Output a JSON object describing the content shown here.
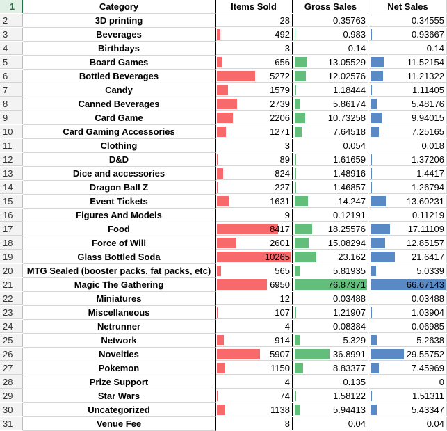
{
  "header": {
    "row_number": "1",
    "category": "Category",
    "items_sold": "Items Sold",
    "gross_sales": "Gross Sales",
    "net_sales": "Net Sales"
  },
  "colors": {
    "items_bar": "#f8696b",
    "gross_bar": "#63be7b",
    "net_bar": "#5a8ac6",
    "selected_row_header": "#217346"
  },
  "scale": {
    "items_max": 10265,
    "gross_max": 76.87371,
    "net_max": 66.67143
  },
  "rows": [
    {
      "n": "2",
      "category": "3D printing",
      "items": "28",
      "gross": "0.35763",
      "net": "0.34555"
    },
    {
      "n": "3",
      "category": "Beverages",
      "items": "492",
      "gross": "0.983",
      "net": "0.93667"
    },
    {
      "n": "4",
      "category": "Birthdays",
      "items": "3",
      "gross": "0.14",
      "net": "0.14"
    },
    {
      "n": "5",
      "category": "Board Games",
      "items": "656",
      "gross": "13.05529",
      "net": "11.52154"
    },
    {
      "n": "6",
      "category": "Bottled Beverages",
      "items": "5272",
      "gross": "12.02576",
      "net": "11.21322"
    },
    {
      "n": "7",
      "category": "Candy",
      "items": "1579",
      "gross": "1.18444",
      "net": "1.11405"
    },
    {
      "n": "8",
      "category": "Canned Beverages",
      "items": "2739",
      "gross": "5.86174",
      "net": "5.48176"
    },
    {
      "n": "9",
      "category": "Card Game",
      "items": "2206",
      "gross": "10.73258",
      "net": "9.94015"
    },
    {
      "n": "10",
      "category": "Card Gaming Accessories",
      "items": "1271",
      "gross": "7.64518",
      "net": "7.25165"
    },
    {
      "n": "11",
      "category": "Clothing",
      "items": "3",
      "gross": "0.054",
      "net": "0.018"
    },
    {
      "n": "12",
      "category": "D&D",
      "items": "89",
      "gross": "1.61659",
      "net": "1.37206"
    },
    {
      "n": "13",
      "category": "Dice and accessories",
      "items": "824",
      "gross": "1.48916",
      "net": "1.4417"
    },
    {
      "n": "14",
      "category": "Dragon Ball Z",
      "items": "227",
      "gross": "1.46857",
      "net": "1.26794"
    },
    {
      "n": "15",
      "category": "Event Tickets",
      "items": "1631",
      "gross": "14.247",
      "net": "13.60231"
    },
    {
      "n": "16",
      "category": "Figures And Models",
      "items": "9",
      "gross": "0.12191",
      "net": "0.11219"
    },
    {
      "n": "17",
      "category": "Food",
      "items": "8417",
      "gross": "18.25576",
      "net": "17.11109"
    },
    {
      "n": "18",
      "category": "Force of Will",
      "items": "2601",
      "gross": "15.08294",
      "net": "12.85157"
    },
    {
      "n": "19",
      "category": "Glass Bottled Soda",
      "items": "10265",
      "gross": "23.162",
      "net": "21.6417"
    },
    {
      "n": "20",
      "category": "MTG Sealed (booster packs, fat packs, etc)",
      "items": "565",
      "gross": "5.81935",
      "net": "5.0339"
    },
    {
      "n": "21",
      "category": "Magic The Gathering",
      "items": "6950",
      "gross": "76.87371",
      "net": "66.67143"
    },
    {
      "n": "22",
      "category": "Miniatures",
      "items": "12",
      "gross": "0.03488",
      "net": "0.03488"
    },
    {
      "n": "23",
      "category": "Miscellaneous",
      "items": "107",
      "gross": "1.21907",
      "net": "1.03904"
    },
    {
      "n": "24",
      "category": "Netrunner",
      "items": "4",
      "gross": "0.08384",
      "net": "0.06985"
    },
    {
      "n": "25",
      "category": "Network",
      "items": "914",
      "gross": "5.329",
      "net": "5.2638"
    },
    {
      "n": "26",
      "category": "Novelties",
      "items": "5907",
      "gross": "36.8991",
      "net": "29.55752"
    },
    {
      "n": "27",
      "category": "Pokemon",
      "items": "1150",
      "gross": "8.83377",
      "net": "7.45969"
    },
    {
      "n": "28",
      "category": "Prize Support",
      "items": "4",
      "gross": "0.135",
      "net": "0"
    },
    {
      "n": "29",
      "category": "Star Wars",
      "items": "74",
      "gross": "1.58122",
      "net": "1.51311"
    },
    {
      "n": "30",
      "category": "Uncategorized",
      "items": "1138",
      "gross": "5.94413",
      "net": "5.43347"
    },
    {
      "n": "31",
      "category": "Venue Fee",
      "items": "8",
      "gross": "0.04",
      "net": "0.04"
    }
  ]
}
